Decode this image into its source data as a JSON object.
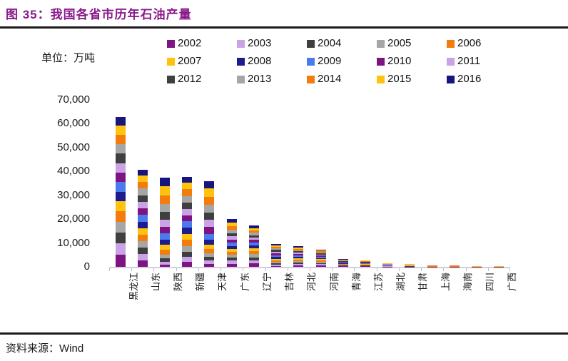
{
  "header": {
    "title": "图 35：我国各省市历年石油产量"
  },
  "chart": {
    "unit_label": "单位：万吨"
  },
  "footer": {
    "source": "资料来源：Wind"
  },
  "y_axis": {
    "ticks": [
      "70,000",
      "60,000",
      "50,000",
      "40,000",
      "30,000",
      "20,000",
      "10,000",
      "0"
    ]
  },
  "chart_data": {
    "type": "bar",
    "stacked": true,
    "title": "我国各省市历年石油产量",
    "unit": "万吨",
    "xlabel": "",
    "ylabel": "万吨",
    "ylim": [
      0,
      70000
    ],
    "y_tick_step": 10000,
    "grid": false,
    "legend_position": "top",
    "categories": [
      "黑龙江",
      "山东",
      "陕西",
      "新疆",
      "天津",
      "广东",
      "辽宁",
      "吉林",
      "河北",
      "河南",
      "青海",
      "江苏",
      "湖北",
      "甘肃",
      "上海",
      "海南",
      "四川",
      "广西"
    ],
    "series": [
      {
        "name": "2002",
        "color": "#7D1482",
        "values": [
          5013,
          2670,
          965,
          2023,
          1300,
          1250,
          1351,
          450,
          600,
          560,
          210,
          170,
          120,
          75,
          40,
          40,
          30,
          30
        ]
      },
      {
        "name": "2003",
        "color": "#C9A3E6",
        "values": [
          4840,
          2666,
          1105,
          2132,
          1400,
          1300,
          1340,
          500,
          590,
          550,
          215,
          175,
          118,
          78,
          40,
          40,
          30,
          30
        ]
      },
      {
        "name": "2004",
        "color": "#3F3F3F",
        "values": [
          4640,
          2674,
          1400,
          2228,
          1500,
          1350,
          1330,
          550,
          580,
          540,
          220,
          180,
          115,
          80,
          40,
          40,
          30,
          30
        ]
      },
      {
        "name": "2005",
        "color": "#A6A6A6",
        "values": [
          4495,
          2694,
          1700,
          2408,
          1600,
          1250,
          1300,
          600,
          580,
          530,
          222,
          185,
          112,
          82,
          40,
          40,
          30,
          30
        ]
      },
      {
        "name": "2006",
        "color": "#F27D0D",
        "values": [
          4341,
          2700,
          1900,
          2475,
          1700,
          1200,
          1250,
          650,
          590,
          520,
          225,
          190,
          110,
          85,
          40,
          40,
          30,
          30
        ]
      },
      {
        "name": "2007",
        "color": "#FFC20E",
        "values": [
          4170,
          2770,
          2100,
          2600,
          1900,
          1200,
          1230,
          700,
          600,
          510,
          220,
          195,
          108,
          85,
          40,
          40,
          30,
          30
        ]
      },
      {
        "name": "2008",
        "color": "#1C1C8F",
        "values": [
          4020,
          2774,
          2300,
          2715,
          2100,
          1250,
          1200,
          750,
          600,
          500,
          220,
          200,
          105,
          85,
          40,
          40,
          30,
          30
        ]
      },
      {
        "name": "2009",
        "color": "#4B79EE",
        "values": [
          4000,
          2784,
          2500,
          2513,
          2300,
          1300,
          1150,
          750,
          600,
          490,
          220,
          200,
          102,
          85,
          40,
          40,
          30,
          30
        ]
      },
      {
        "name": "2010",
        "color": "#7D1482",
        "values": [
          4000,
          2734,
          2800,
          2560,
          2900,
          1400,
          1100,
          750,
          590,
          480,
          223,
          200,
          100,
          85,
          40,
          40,
          30,
          30
        ]
      },
      {
        "name": "2011",
        "color": "#C9A3E6",
        "values": [
          3990,
          2760,
          3005,
          2665,
          3000,
          1300,
          1050,
          700,
          580,
          470,
          222,
          195,
          98,
          82,
          40,
          40,
          30,
          30
        ]
      },
      {
        "name": "2012",
        "color": "#3F3F3F",
        "values": [
          4000,
          2790,
          3245,
          2700,
          3100,
          1350,
          1020,
          700,
          570,
          460,
          220,
          190,
          95,
          80,
          40,
          40,
          30,
          30
        ]
      },
      {
        "name": "2013",
        "color": "#A6A6A6",
        "values": [
          4000,
          2800,
          3434,
          2700,
          3200,
          1400,
          1000,
          700,
          560,
          450,
          221,
          185,
          92,
          78,
          40,
          40,
          30,
          30
        ]
      },
      {
        "name": "2014",
        "color": "#F27D0D",
        "values": [
          4000,
          2810,
          3628,
          2780,
          3300,
          1500,
          1000,
          700,
          550,
          440,
          230,
          180,
          90,
          75,
          40,
          40,
          30,
          30
        ]
      },
      {
        "name": "2015",
        "color": "#FFC20E",
        "values": [
          3839,
          2720,
          3701,
          2760,
          3500,
          1600,
          1000,
          600,
          540,
          430,
          232,
          175,
          85,
          72,
          40,
          40,
          30,
          30
        ]
      },
      {
        "name": "2016",
        "color": "#16167E",
        "values": [
          3656,
          2390,
          3567,
          2570,
          3200,
          1550,
          950,
          500,
          480,
          400,
          220,
          160,
          80,
          70,
          40,
          40,
          30,
          30
        ]
      }
    ]
  }
}
